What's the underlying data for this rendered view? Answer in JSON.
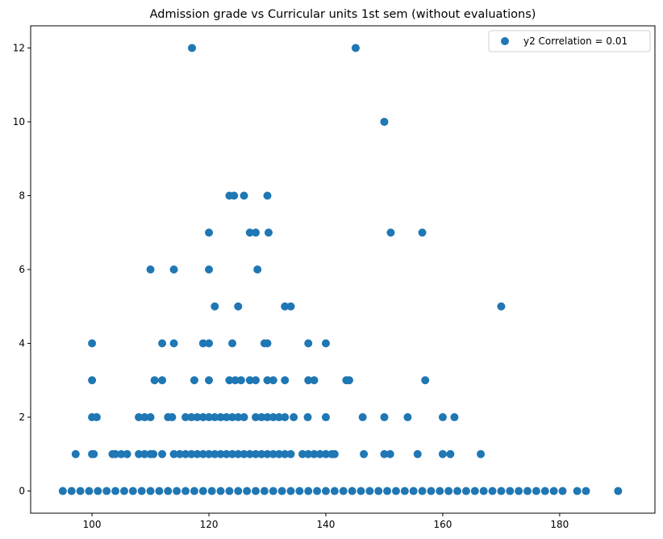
{
  "chart_data": {
    "type": "scatter",
    "title": "Admission grade vs Curricular units 1st sem (without evaluations)",
    "xlabel": "",
    "ylabel": "",
    "xlim": [
      89.5,
      196.3
    ],
    "ylim": [
      -0.6,
      12.6
    ],
    "x_ticks": [
      100,
      120,
      140,
      160,
      180
    ],
    "y_ticks": [
      0,
      2,
      4,
      6,
      8,
      10,
      12
    ],
    "grid": false,
    "legend_position": "top-right",
    "series": [
      {
        "name": "y2 Correlation = 0.01",
        "color": "#1f77b4",
        "points": [
          [
            95,
            0
          ],
          [
            96.5,
            0
          ],
          [
            98,
            0
          ],
          [
            99.5,
            0
          ],
          [
            101,
            0
          ],
          [
            102.5,
            0
          ],
          [
            104,
            0
          ],
          [
            105.5,
            0
          ],
          [
            107,
            0
          ],
          [
            108.5,
            0
          ],
          [
            110,
            0
          ],
          [
            111.5,
            0
          ],
          [
            113,
            0
          ],
          [
            114.5,
            0
          ],
          [
            116,
            0
          ],
          [
            117.5,
            0
          ],
          [
            119,
            0
          ],
          [
            120.5,
            0
          ],
          [
            122,
            0
          ],
          [
            123.5,
            0
          ],
          [
            125,
            0
          ],
          [
            126.5,
            0
          ],
          [
            128,
            0
          ],
          [
            129.5,
            0
          ],
          [
            131,
            0
          ],
          [
            132.5,
            0
          ],
          [
            134,
            0
          ],
          [
            135.5,
            0
          ],
          [
            137,
            0
          ],
          [
            138.5,
            0
          ],
          [
            140,
            0
          ],
          [
            141.5,
            0
          ],
          [
            143,
            0
          ],
          [
            144.5,
            0
          ],
          [
            146,
            0
          ],
          [
            147.5,
            0
          ],
          [
            149,
            0
          ],
          [
            150.5,
            0
          ],
          [
            152,
            0
          ],
          [
            153.5,
            0
          ],
          [
            155,
            0
          ],
          [
            156.5,
            0
          ],
          [
            158,
            0
          ],
          [
            159.5,
            0
          ],
          [
            161,
            0
          ],
          [
            162.5,
            0
          ],
          [
            164,
            0
          ],
          [
            165.5,
            0
          ],
          [
            167,
            0
          ],
          [
            168.5,
            0
          ],
          [
            170,
            0
          ],
          [
            171.5,
            0
          ],
          [
            173,
            0
          ],
          [
            174.5,
            0
          ],
          [
            176,
            0
          ],
          [
            177.5,
            0
          ],
          [
            179,
            0
          ],
          [
            180.5,
            0
          ],
          [
            183,
            0
          ],
          [
            184.5,
            0
          ],
          [
            190,
            0
          ],
          [
            97.2,
            1
          ],
          [
            100,
            1
          ],
          [
            100.3,
            1
          ],
          [
            103.5,
            1
          ],
          [
            104,
            1
          ],
          [
            105,
            1
          ],
          [
            106,
            1
          ],
          [
            108,
            1
          ],
          [
            109,
            1
          ],
          [
            110,
            1
          ],
          [
            110.5,
            1
          ],
          [
            112,
            1
          ],
          [
            114,
            1
          ],
          [
            115,
            1
          ],
          [
            116,
            1
          ],
          [
            117,
            1
          ],
          [
            118,
            1
          ],
          [
            119,
            1
          ],
          [
            120,
            1
          ],
          [
            121,
            1
          ],
          [
            122,
            1
          ],
          [
            123,
            1
          ],
          [
            124,
            1
          ],
          [
            125,
            1
          ],
          [
            126,
            1
          ],
          [
            127,
            1
          ],
          [
            128,
            1
          ],
          [
            129,
            1
          ],
          [
            130,
            1
          ],
          [
            131,
            1
          ],
          [
            132,
            1
          ],
          [
            133,
            1
          ],
          [
            134,
            1
          ],
          [
            136,
            1
          ],
          [
            137,
            1
          ],
          [
            138,
            1
          ],
          [
            139,
            1
          ],
          [
            140,
            1
          ],
          [
            141,
            1
          ],
          [
            141.5,
            1
          ],
          [
            146.5,
            1
          ],
          [
            150,
            1
          ],
          [
            151,
            1
          ],
          [
            155.7,
            1
          ],
          [
            160,
            1
          ],
          [
            161.3,
            1
          ],
          [
            166.5,
            1
          ],
          [
            100,
            2
          ],
          [
            100.8,
            2
          ],
          [
            108,
            2
          ],
          [
            109,
            2
          ],
          [
            110,
            2
          ],
          [
            113,
            2
          ],
          [
            113.7,
            2
          ],
          [
            116,
            2
          ],
          [
            117,
            2
          ],
          [
            118,
            2
          ],
          [
            119,
            2
          ],
          [
            120,
            2
          ],
          [
            121,
            2
          ],
          [
            122,
            2
          ],
          [
            123,
            2
          ],
          [
            124,
            2
          ],
          [
            125,
            2
          ],
          [
            126,
            2
          ],
          [
            128,
            2
          ],
          [
            129,
            2
          ],
          [
            130,
            2
          ],
          [
            131,
            2
          ],
          [
            132,
            2
          ],
          [
            133,
            2
          ],
          [
            134.5,
            2
          ],
          [
            136.9,
            2
          ],
          [
            140,
            2
          ],
          [
            146.3,
            2
          ],
          [
            150,
            2
          ],
          [
            154,
            2
          ],
          [
            160,
            2
          ],
          [
            162,
            2
          ],
          [
            100,
            3
          ],
          [
            110.7,
            3
          ],
          [
            112,
            3
          ],
          [
            117.5,
            3
          ],
          [
            120,
            3
          ],
          [
            123.5,
            3
          ],
          [
            124.5,
            3
          ],
          [
            125.5,
            3
          ],
          [
            127,
            3
          ],
          [
            128,
            3
          ],
          [
            130,
            3
          ],
          [
            131,
            3
          ],
          [
            133,
            3
          ],
          [
            137,
            3
          ],
          [
            138,
            3
          ],
          [
            143.5,
            3
          ],
          [
            144,
            3
          ],
          [
            157,
            3
          ],
          [
            100,
            4
          ],
          [
            112,
            4
          ],
          [
            114,
            4
          ],
          [
            119,
            4
          ],
          [
            120,
            4
          ],
          [
            124,
            4
          ],
          [
            129.5,
            4
          ],
          [
            130,
            4
          ],
          [
            137,
            4
          ],
          [
            140,
            4
          ],
          [
            121,
            5
          ],
          [
            125,
            5
          ],
          [
            133,
            5
          ],
          [
            134,
            5
          ],
          [
            170,
            5
          ],
          [
            110,
            6
          ],
          [
            114,
            6
          ],
          [
            120,
            6
          ],
          [
            128.3,
            6
          ],
          [
            120,
            7
          ],
          [
            127,
            7
          ],
          [
            128,
            7
          ],
          [
            130.2,
            7
          ],
          [
            151.1,
            7
          ],
          [
            156.5,
            7
          ],
          [
            123.5,
            8
          ],
          [
            124.3,
            8
          ],
          [
            126,
            8
          ],
          [
            130,
            8
          ],
          [
            150,
            10
          ],
          [
            117.1,
            12
          ],
          [
            145.1,
            12
          ]
        ]
      }
    ]
  }
}
